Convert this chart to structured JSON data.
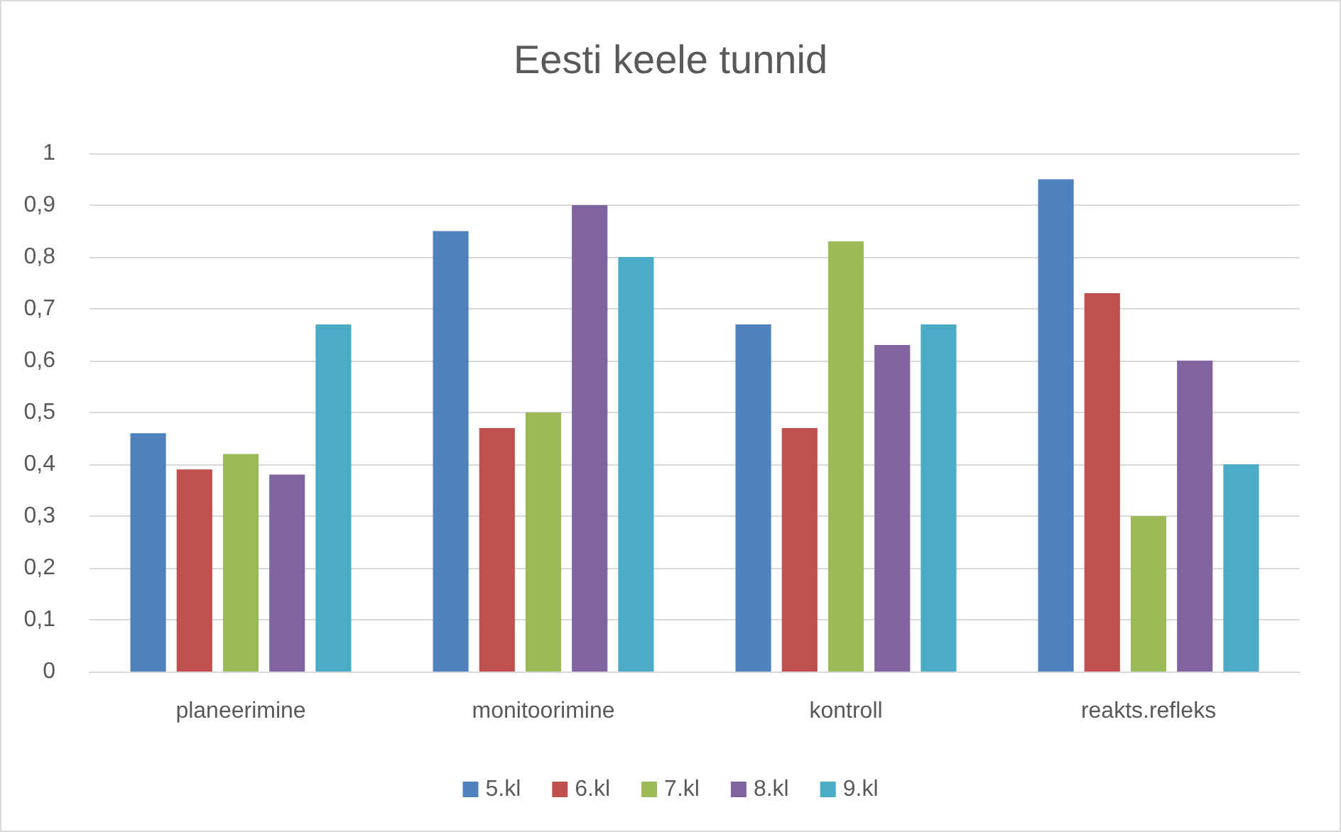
{
  "chart_data": {
    "type": "bar",
    "title": "Eesti keele tunnid",
    "categories": [
      "planeerimine",
      "monitoorimine",
      "kontroll",
      "reakts.refleks"
    ],
    "series": [
      {
        "name": "5.kl",
        "color": "#4f81bd",
        "values": [
          0.46,
          0.85,
          0.67,
          0.95
        ]
      },
      {
        "name": "6.kl",
        "color": "#c0504d",
        "values": [
          0.39,
          0.47,
          0.47,
          0.73
        ]
      },
      {
        "name": "7.kl",
        "color": "#9bbb59",
        "values": [
          0.42,
          0.5,
          0.83,
          0.3
        ]
      },
      {
        "name": "8.kl",
        "color": "#8064a2",
        "values": [
          0.38,
          0.9,
          0.63,
          0.6
        ]
      },
      {
        "name": "9.kl",
        "color": "#4bacc6",
        "values": [
          0.67,
          0.8,
          0.67,
          0.4
        ]
      }
    ],
    "ylim": [
      0,
      1
    ],
    "yticks": [
      {
        "value": 0,
        "label": "0"
      },
      {
        "value": 0.1,
        "label": "0,1"
      },
      {
        "value": 0.2,
        "label": "0,2"
      },
      {
        "value": 0.3,
        "label": "0,3"
      },
      {
        "value": 0.4,
        "label": "0,4"
      },
      {
        "value": 0.5,
        "label": "0,5"
      },
      {
        "value": 0.6,
        "label": "0,6"
      },
      {
        "value": 0.7,
        "label": "0,7"
      },
      {
        "value": 0.8,
        "label": "0,8"
      },
      {
        "value": 0.9,
        "label": "0,9"
      },
      {
        "value": 1,
        "label": "1"
      }
    ],
    "grid": "y",
    "legend": "bottom"
  }
}
